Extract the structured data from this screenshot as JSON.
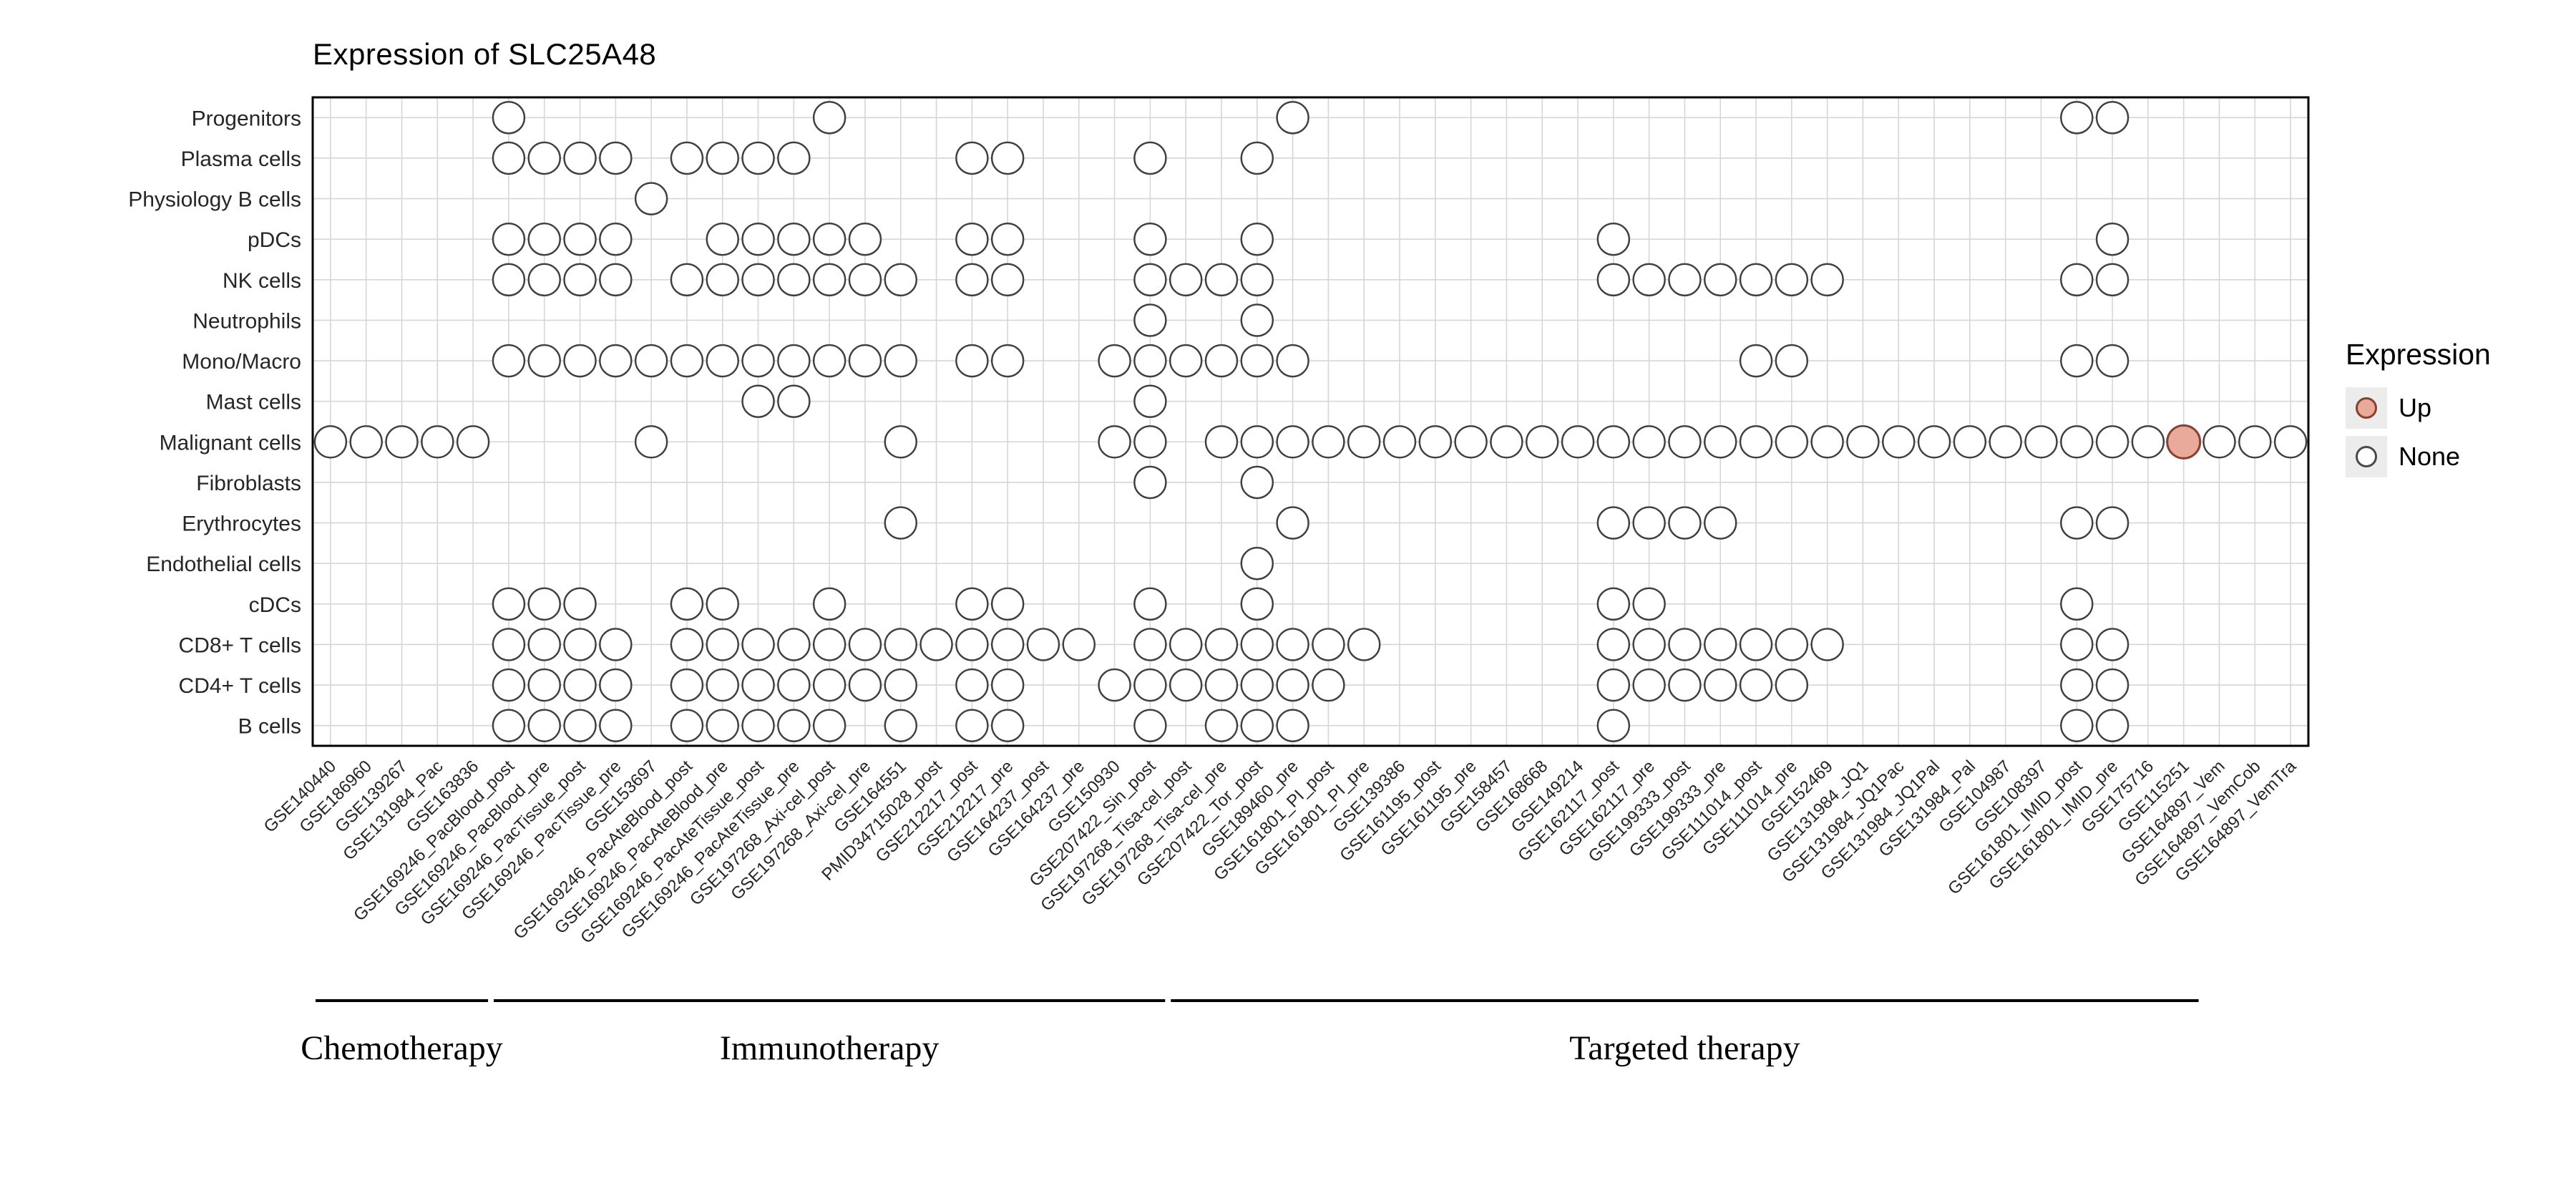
{
  "chart_data": {
    "type": "scatter",
    "subtype": "dotplot-grid",
    "title": "Expression of SLC25A48",
    "y_categories": [
      "Progenitors",
      "Plasma cells",
      "Physiology B cells",
      "pDCs",
      "NK cells",
      "Neutrophils",
      "Mono/Macro",
      "Mast cells",
      "Malignant cells",
      "Fibroblasts",
      "Erythrocytes",
      "Endothelial cells",
      "cDCs",
      "CD8+ T cells",
      "CD4+ T cells",
      "B cells"
    ],
    "x_categories": [
      "GSE140440",
      "GSE186960",
      "GSE139267",
      "GSE131984_Pac",
      "GSE163836",
      "GSE169246_PacBlood_post",
      "GSE169246_PacBlood_pre",
      "GSE169246_PacTissue_post",
      "GSE169246_PacTissue_pre",
      "GSE153697",
      "GSE169246_PacAteBlood_post",
      "GSE169246_PacAteBlood_pre",
      "GSE169246_PacAteTissue_post",
      "GSE169246_PacAteTissue_pre",
      "GSE197268_Axi-cel_post",
      "GSE197268_Axi-cel_pre",
      "GSE164551",
      "PMID34715028_post",
      "GSE212217_post",
      "GSE212217_pre",
      "GSE164237_post",
      "GSE164237_pre",
      "GSE150930",
      "GSE207422_Sin_post",
      "GSE197268_Tisa-cel_post",
      "GSE197268_Tisa-cel_pre",
      "GSE207422_Tor_post",
      "GSE189460_pre",
      "GSE161801_PI_post",
      "GSE161801_PI_pre",
      "GSE139386",
      "GSE161195_post",
      "GSE161195_pre",
      "GSE158457",
      "GSE168668",
      "GSE149214",
      "GSE162117_post",
      "GSE162117_pre",
      "GSE199333_post",
      "GSE199333_pre",
      "GSE111014_post",
      "GSE111014_pre",
      "GSE152469",
      "GSE131984_JQ1",
      "GSE131984_JQ1Pac",
      "GSE131984_JQ1Pal",
      "GSE131984_Pal",
      "GSE104987",
      "GSE108397",
      "GSE161801_IMID_post",
      "GSE161801_IMID_pre",
      "GSE175716",
      "GSE115251",
      "GSE164897_Vem",
      "GSE164897_VemCob",
      "GSE164897_VemTra"
    ],
    "dots": {
      "Progenitors": [
        6,
        15,
        28,
        50,
        51
      ],
      "Plasma cells": [
        6,
        7,
        8,
        9,
        11,
        12,
        13,
        14,
        19,
        20,
        24,
        27
      ],
      "Physiology B cells": [
        10
      ],
      "pDCs": [
        6,
        7,
        8,
        9,
        12,
        13,
        14,
        15,
        16,
        19,
        20,
        24,
        27,
        37,
        51
      ],
      "NK cells": [
        6,
        7,
        8,
        9,
        11,
        12,
        13,
        14,
        15,
        16,
        17,
        19,
        20,
        24,
        25,
        26,
        27,
        37,
        38,
        39,
        40,
        41,
        42,
        43,
        50,
        51
      ],
      "Neutrophils": [
        24,
        27
      ],
      "Mono/Macro": [
        6,
        7,
        8,
        9,
        10,
        11,
        12,
        13,
        14,
        15,
        16,
        17,
        19,
        20,
        23,
        24,
        25,
        26,
        27,
        28,
        41,
        42,
        50,
        51
      ],
      "Mast cells": [
        13,
        14,
        24
      ],
      "Malignant cells": [
        1,
        2,
        3,
        4,
        5,
        10,
        17,
        23,
        24,
        26,
        27,
        28,
        29,
        30,
        31,
        32,
        33,
        34,
        35,
        36,
        37,
        38,
        39,
        40,
        41,
        42,
        43,
        44,
        45,
        46,
        47,
        48,
        49,
        50,
        51,
        52,
        53,
        54,
        55,
        56
      ],
      "Fibroblasts": [
        24,
        27
      ],
      "Erythrocytes": [
        17,
        28,
        37,
        38,
        39,
        40,
        50,
        51
      ],
      "Endothelial cells": [
        27
      ],
      "cDCs": [
        6,
        7,
        8,
        11,
        12,
        15,
        19,
        20,
        24,
        27,
        37,
        38,
        50
      ],
      "CD8+ T cells": [
        6,
        7,
        8,
        9,
        11,
        12,
        13,
        14,
        15,
        16,
        17,
        18,
        19,
        20,
        21,
        22,
        24,
        25,
        26,
        27,
        28,
        29,
        30,
        37,
        38,
        39,
        40,
        41,
        42,
        43,
        50,
        51
      ],
      "CD4+ T cells": [
        6,
        7,
        8,
        9,
        11,
        12,
        13,
        14,
        15,
        16,
        17,
        19,
        20,
        23,
        24,
        25,
        26,
        27,
        28,
        29,
        37,
        38,
        39,
        40,
        41,
        42,
        50,
        51
      ],
      "B cells": [
        6,
        7,
        8,
        9,
        11,
        12,
        13,
        14,
        15,
        17,
        19,
        20,
        24,
        26,
        27,
        28,
        37,
        50,
        51
      ]
    },
    "up_dots": [
      {
        "row": "Malignant cells",
        "col": 53
      }
    ],
    "groups": [
      {
        "label": "Chemotherapy",
        "start": 1,
        "end": 5
      },
      {
        "label": "Immunotherapy",
        "start": 6,
        "end": 24
      },
      {
        "label": "Targeted therapy",
        "start": 25,
        "end": 53
      }
    ],
    "legend": {
      "title": "Expression",
      "items": [
        {
          "label": "Up",
          "fill": "#e9a99b",
          "stroke": "#86422f"
        },
        {
          "label": "None",
          "fill": "#ffffff",
          "stroke": "#4a4a4a"
        }
      ]
    },
    "style": {
      "grid_color": "#d6d6d6",
      "panel_border_color": "#000000",
      "dot_stroke_color": "#3f3f3f",
      "dot_fill_color": "#ffffff",
      "legend_key_bg": "#ececec"
    },
    "layout_hints": {
      "grid": "on",
      "legend_position": "right",
      "x_label_angle": 45
    }
  }
}
